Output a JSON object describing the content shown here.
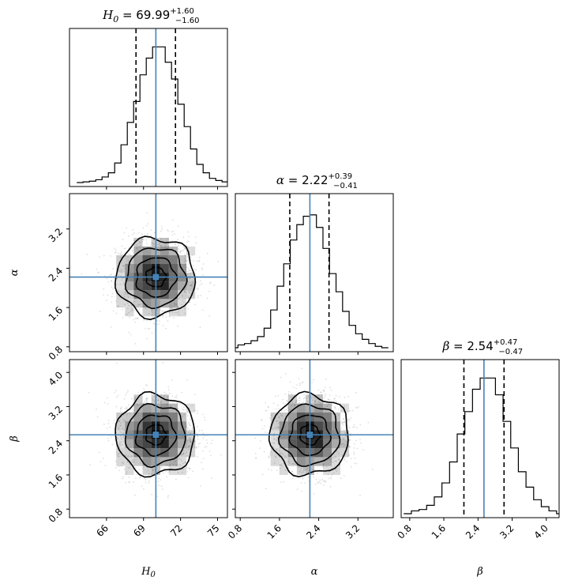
{
  "chart_data": {
    "type": "corner",
    "parameters": [
      {
        "key": "H0",
        "label": "H",
        "label_sub": "0",
        "median": 69.99,
        "err_plus": "+1.60",
        "err_minus": "−1.60",
        "q16": 68.39,
        "q84": 71.59,
        "truth": 70.0,
        "range": [
          63.0,
          75.8
        ]
      },
      {
        "key": "alpha",
        "label": "α",
        "label_sub": "",
        "median": 2.22,
        "err_plus": "+0.39",
        "err_minus": "−0.41",
        "q16": 1.81,
        "q84": 2.61,
        "truth": 2.22,
        "range": [
          0.7,
          3.92
        ]
      },
      {
        "key": "beta",
        "label": "β",
        "label_sub": "",
        "median": 2.54,
        "err_plus": "+0.47",
        "err_minus": "−0.47",
        "q16": 2.07,
        "q84": 3.01,
        "truth": 2.54,
        "range": [
          0.6,
          4.3
        ]
      }
    ],
    "titles": [
      {
        "name": "H",
        "sub": "0",
        "eq": " = 69.99",
        "sup": "+1.60",
        "subsc": "−1.60"
      },
      {
        "name": "α",
        "sub": "",
        "eq": " = 2.22",
        "sup": "+0.39",
        "subsc": "−0.41"
      },
      {
        "name": "β",
        "sub": "",
        "eq": " = 2.54",
        "sup": "+0.47",
        "subsc": "−0.47"
      }
    ],
    "ticks": {
      "H0": [
        "66",
        "69",
        "72",
        "75"
      ],
      "alpha": [
        "0.8",
        "1.6",
        "2.4",
        "3.2"
      ],
      "beta": [
        "0.8",
        "1.6",
        "2.4",
        "3.2",
        "4.0"
      ]
    },
    "histograms": {
      "H0": [
        0.0,
        0.005,
        0.01,
        0.02,
        0.04,
        0.07,
        0.14,
        0.27,
        0.43,
        0.58,
        0.77,
        0.89,
        0.97,
        0.97,
        0.86,
        0.74,
        0.56,
        0.4,
        0.24,
        0.13,
        0.07,
        0.03,
        0.015,
        0.005,
        0.0
      ],
      "alpha": [
        0.0,
        0.02,
        0.03,
        0.05,
        0.08,
        0.14,
        0.27,
        0.44,
        0.6,
        0.77,
        0.88,
        0.94,
        0.95,
        0.86,
        0.71,
        0.53,
        0.4,
        0.26,
        0.16,
        0.1,
        0.06,
        0.03,
        0.01,
        0.0
      ],
      "beta": [
        0.0,
        0.02,
        0.03,
        0.06,
        0.12,
        0.22,
        0.37,
        0.57,
        0.73,
        0.89,
        0.97,
        0.97,
        0.85,
        0.66,
        0.47,
        0.3,
        0.19,
        0.1,
        0.05,
        0.02,
        0.0
      ]
    },
    "sigma_contour_levels": [
      0.5,
      1.0,
      1.5,
      2.0
    ],
    "colors": {
      "truth": "#4682b4",
      "hist": "#000000",
      "quantile": "#000000",
      "points": "#808080",
      "density": "#000000"
    }
  }
}
